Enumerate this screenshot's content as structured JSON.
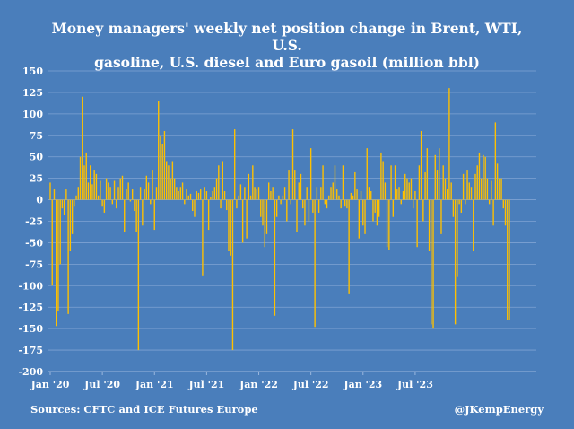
{
  "chart_data": {
    "type": "bar",
    "title": "Money managers' weekly net position change in Brent, WTI, U.S. gasoline, U.S. diesel and Euro gasoil (million bbl)",
    "title_lines": [
      "Money managers' weekly net position change in Brent, WTI, U.S.",
      "gasoline, U.S. diesel and Euro gasoil (million bbl)"
    ],
    "source": "Sources: CFTC and ICE Futures Europe",
    "credit": "@JKempEnergy",
    "ylim": [
      -200,
      150
    ],
    "yticks": [
      150,
      125,
      100,
      75,
      50,
      25,
      0,
      -25,
      -50,
      -75,
      -100,
      -125,
      -150,
      -175,
      -200
    ],
    "xticks": [
      "Jan '20",
      "Jul '20",
      "Jan '21",
      "Jul '21",
      "Jan '22",
      "Jul '22",
      "Jan '23",
      "Jul '23"
    ],
    "grid": true,
    "legend": "none",
    "bar_color": "#ffc000",
    "background_color": "#4a7ebb",
    "values": [
      20,
      -100,
      12,
      -147,
      -130,
      -75,
      -10,
      -18,
      12,
      -133,
      -60,
      -40,
      -8,
      5,
      15,
      50,
      120,
      40,
      55,
      20,
      40,
      18,
      35,
      30,
      5,
      22,
      -8,
      -15,
      25,
      20,
      15,
      -5,
      22,
      -10,
      15,
      25,
      28,
      -38,
      12,
      20,
      -2,
      12,
      -13,
      -38,
      -175,
      15,
      -30,
      12,
      28,
      20,
      -5,
      35,
      -35,
      15,
      115,
      75,
      65,
      80,
      45,
      40,
      25,
      45,
      25,
      15,
      10,
      15,
      20,
      -5,
      12,
      5,
      7,
      -13,
      -20,
      10,
      8,
      12,
      -88,
      15,
      10,
      -35,
      3,
      10,
      15,
      25,
      40,
      -10,
      45,
      10,
      -12,
      -60,
      -65,
      -175,
      82,
      -10,
      5,
      18,
      -50,
      15,
      -45,
      30,
      5,
      40,
      15,
      12,
      15,
      -20,
      -30,
      -55,
      -40,
      20,
      10,
      15,
      -135,
      -20,
      5,
      -5,
      5,
      15,
      -25,
      35,
      -5,
      82,
      35,
      -38,
      20,
      30,
      -10,
      -30,
      15,
      -25,
      60,
      -15,
      -148,
      15,
      -15,
      15,
      40,
      -5,
      -10,
      5,
      15,
      20,
      40,
      12,
      5,
      -10,
      40,
      -8,
      -10,
      -110,
      8,
      5,
      32,
      12,
      -45,
      10,
      -30,
      -40,
      60,
      15,
      10,
      -25,
      -15,
      -30,
      -20,
      55,
      45,
      20,
      -55,
      -58,
      40,
      -20,
      40,
      12,
      15,
      -5,
      10,
      30,
      25,
      20,
      25,
      -10,
      10,
      -55,
      40,
      80,
      -25,
      32,
      60,
      -60,
      -145,
      -150,
      52,
      35,
      60,
      -40,
      40,
      25,
      12,
      130,
      20,
      -20,
      -145,
      -90,
      -5,
      -15,
      30,
      -5,
      35,
      20,
      15,
      -60,
      30,
      40,
      55,
      25,
      52,
      50,
      25,
      -5,
      22,
      -30,
      90,
      42,
      25,
      25,
      -10,
      -30,
      -140,
      -140
    ]
  }
}
